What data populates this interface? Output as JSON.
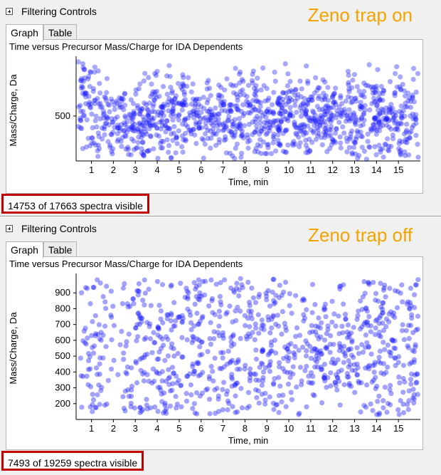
{
  "panels": [
    {
      "filtering_label": "Filtering Controls",
      "tabs": [
        "Graph",
        "Table"
      ],
      "annotation": "Zeno trap on",
      "status_text": "14753 of 17663 spectra visible",
      "chart_data": {
        "type": "scatter",
        "title": "Time versus Precursor Mass/Charge for IDA Dependents",
        "xlabel": "Time, min",
        "ylabel": "Mass/Charge, Da",
        "xlim": [
          0.3,
          16.0
        ],
        "ylim": [
          100,
          1000
        ],
        "x_ticks": [
          1,
          2,
          3,
          4,
          5,
          6,
          7,
          8,
          9,
          10,
          11,
          12,
          13,
          14,
          15
        ],
        "y_ticks": [
          500
        ],
        "marker_color": "#1a1aff",
        "total_spectra": 17663,
        "visible_spectra": 14753
      }
    },
    {
      "filtering_label": "Filtering Controls",
      "tabs": [
        "Graph",
        "Table"
      ],
      "annotation": "Zeno trap off",
      "status_text": "7493 of 19259 spectra visible",
      "chart_data": {
        "type": "scatter",
        "title": "Time versus Precursor Mass/Charge for IDA Dependents",
        "xlabel": "Time, min",
        "ylabel": "Mass/Charge, Da",
        "xlim": [
          0.3,
          16.0
        ],
        "ylim": [
          100,
          1000
        ],
        "x_ticks": [
          1,
          2,
          3,
          4,
          5,
          6,
          7,
          8,
          9,
          10,
          11,
          12,
          13,
          14,
          15
        ],
        "y_ticks": [
          200,
          300,
          400,
          500,
          600,
          700,
          800,
          900
        ],
        "marker_color": "#1a1aff",
        "total_spectra": 19259,
        "visible_spectra": 7493
      }
    }
  ],
  "colors": {
    "annotation": "#f4a300",
    "status_border": "#c00000",
    "marker": "#1a1aff"
  }
}
